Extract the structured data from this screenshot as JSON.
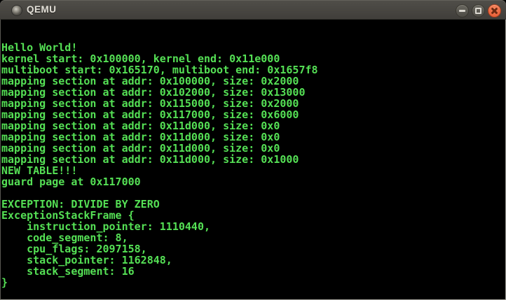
{
  "window": {
    "title": "QEMU",
    "controls": [
      {
        "name": "minimize",
        "glyph": "−"
      },
      {
        "name": "maximize",
        "glyph": "□"
      },
      {
        "name": "close",
        "glyph": "×"
      }
    ]
  },
  "colors": {
    "terminal_green": "#55e055",
    "terminal_bg": "#000000",
    "titlebar_top": "#504e49",
    "titlebar_bottom": "#403e3a",
    "close_button": "#ee6a42"
  },
  "terminal": {
    "lines": [
      "",
      "",
      "Hello World!",
      "kernel start: 0x100000, kernel end: 0x11e000",
      "multiboot start: 0x165170, multiboot end: 0x1657f8",
      "mapping section at addr: 0x100000, size: 0x2000",
      "mapping section at addr: 0x102000, size: 0x13000",
      "mapping section at addr: 0x115000, size: 0x2000",
      "mapping section at addr: 0x117000, size: 0x6000",
      "mapping section at addr: 0x11d000, size: 0x0",
      "mapping section at addr: 0x11d000, size: 0x0",
      "mapping section at addr: 0x11d000, size: 0x0",
      "mapping section at addr: 0x11d000, size: 0x1000",
      "NEW TABLE!!!",
      "guard page at 0x117000",
      "",
      "EXCEPTION: DIVIDE BY ZERO",
      "ExceptionStackFrame {",
      "    instruction_pointer: 1110440,",
      "    code_segment: 8,",
      "    cpu_flags: 2097158,",
      "    stack_pointer: 1162848,",
      "    stack_segment: 16",
      "}"
    ]
  }
}
